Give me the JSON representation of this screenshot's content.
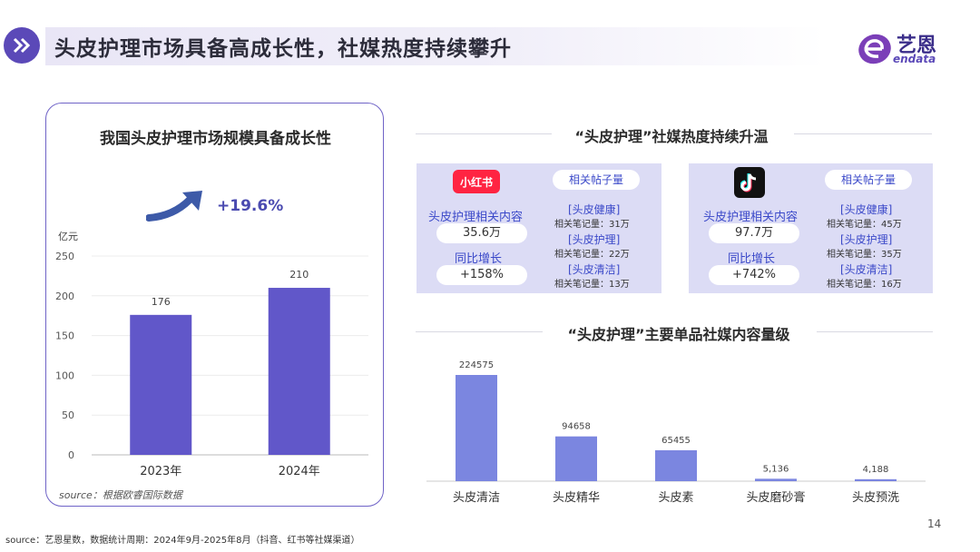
{
  "header": {
    "title": "头皮护理市场具备高成长性，社媒热度持续攀升",
    "logo_cn": "艺恩",
    "logo_en": "endata"
  },
  "left_panel": {
    "title": "我国头皮护理市场规模具备成长性",
    "growth": "+19.6%",
    "unit": "亿元",
    "source": "source：根据欧睿国际数据"
  },
  "right_top": {
    "title": "“头皮护理”社媒热度持续升温",
    "xiaohongshu": {
      "logo_text": "小红书",
      "content_label": "头皮护理相关内容",
      "content_value": "35.6万",
      "growth_label": "同比增长",
      "growth_value": "+158%",
      "tags_header": "相关帖子量",
      "tags": [
        {
          "name": "[头皮健康]",
          "count": "相关笔记量：31万"
        },
        {
          "name": "[头皮护理]",
          "count": "相关笔记量：22万"
        },
        {
          "name": "[头皮清洁]",
          "count": "相关笔记量：13万"
        }
      ]
    },
    "douyin": {
      "content_label": "头皮护理相关内容",
      "content_value": "97.7万",
      "growth_label": "同比增长",
      "growth_value": "+742%",
      "tags_header": "相关帖子量",
      "tags": [
        {
          "name": "[头皮健康]",
          "count": "相关笔记量：45万"
        },
        {
          "name": "[头皮护理]",
          "count": "相关笔记量：35万"
        },
        {
          "name": "[头皮清洁]",
          "count": "相关笔记量：16万"
        }
      ]
    }
  },
  "right_bottom": {
    "title": "“头皮护理”主要单品社媒内容量级"
  },
  "footer": {
    "text": "source：艺恩星数，数据统计周期：2024年9月-2025年8月（抖音、红书等社媒渠道）",
    "page_number": "14"
  },
  "colors": {
    "bar_left": "#6157c9",
    "bar_right": "#7b86e0",
    "accent": "#5b49b8",
    "panel_bg": "#dcdcf5"
  },
  "chart_data": [
    {
      "type": "bar",
      "categories": [
        "2023年",
        "2024年"
      ],
      "values": [
        176,
        210
      ],
      "ylabel": "亿元",
      "ylim": [
        0,
        250
      ],
      "yticks": [
        0,
        50,
        100,
        150,
        200,
        250
      ],
      "grid": true
    },
    {
      "type": "bar",
      "categories": [
        "头皮清洁",
        "头皮精华",
        "头皮素",
        "头皮磨砂膏",
        "头皮预洗"
      ],
      "values": [
        224575,
        94658,
        65455,
        5136,
        4188
      ],
      "value_labels": [
        "224575",
        "94658",
        "65455",
        "5,136",
        "4,188"
      ],
      "grid": false
    }
  ]
}
